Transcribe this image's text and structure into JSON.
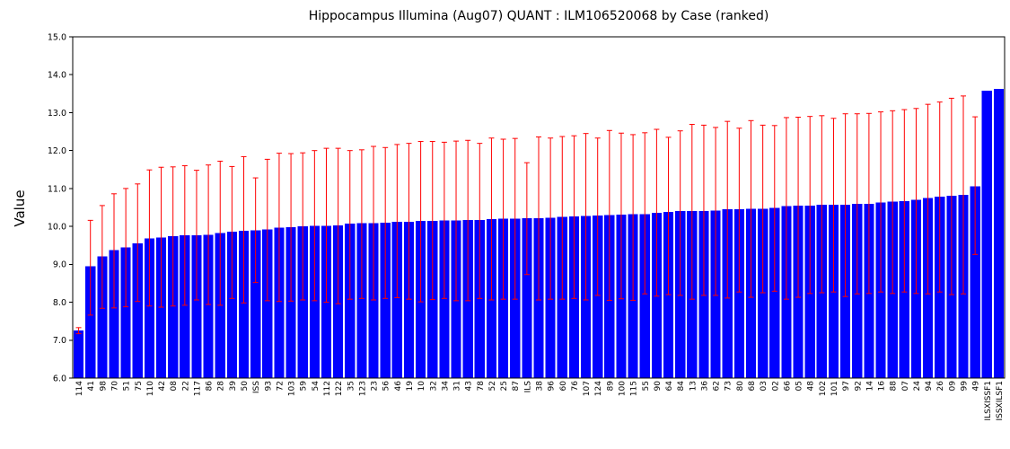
{
  "page": {
    "background": "#ffffff"
  },
  "chart_data": {
    "type": "bar",
    "title": "Hippocampus Illumina (Aug07) QUANT : ILM106520068 by Case (ranked)",
    "ylabel": "Value",
    "xlabel": "",
    "ylim": [
      6.0,
      15.0
    ],
    "ytick_labels": [
      "6.0",
      "7.0",
      "8.0",
      "9.0",
      "10.0",
      "11.0",
      "12.0",
      "13.0",
      "14.0",
      "15.0"
    ],
    "grid": false,
    "legend": null,
    "bar_color": "#0000ff",
    "error_bar_color": "#ff0000",
    "axis_color": "#000000",
    "categories": [
      "114",
      "41",
      "98",
      "70",
      "51",
      "75",
      "110",
      "42",
      "08",
      "22",
      "117",
      "86",
      "28",
      "39",
      "50",
      "ISS",
      "93",
      "72",
      "103",
      "59",
      "54",
      "112",
      "122",
      "35",
      "123",
      "23",
      "56",
      "46",
      "19",
      "10",
      "32",
      "34",
      "31",
      "43",
      "78",
      "52",
      "25",
      "87",
      "ILS",
      "38",
      "96",
      "60",
      "76",
      "107",
      "124",
      "89",
      "100",
      "115",
      "55",
      "90",
      "64",
      "84",
      "13",
      "36",
      "62",
      "73",
      "80",
      "68",
      "03",
      "02",
      "66",
      "05",
      "48",
      "102",
      "101",
      "97",
      "92",
      "14",
      "16",
      "88",
      "07",
      "24",
      "94",
      "26",
      "09",
      "99",
      "49",
      "ILSXISSF1",
      "ISSXILSF1"
    ],
    "values": [
      7.25,
      8.95,
      9.21,
      9.37,
      9.45,
      9.55,
      9.68,
      9.71,
      9.74,
      9.76,
      9.77,
      9.78,
      9.83,
      9.86,
      9.89,
      9.9,
      9.92,
      9.97,
      9.98,
      10.0,
      10.01,
      10.02,
      10.03,
      10.07,
      10.09,
      10.09,
      10.1,
      10.12,
      10.12,
      10.14,
      10.14,
      10.16,
      10.16,
      10.17,
      10.17,
      10.19,
      10.2,
      10.2,
      10.22,
      10.22,
      10.23,
      10.25,
      10.26,
      10.28,
      10.29,
      10.3,
      10.31,
      10.32,
      10.32,
      10.36,
      10.38,
      10.4,
      10.41,
      10.41,
      10.42,
      10.45,
      10.45,
      10.47,
      10.47,
      10.49,
      10.53,
      10.55,
      10.55,
      10.57,
      10.57,
      10.57,
      10.59,
      10.6,
      10.63,
      10.65,
      10.67,
      10.7,
      10.75,
      10.78,
      10.81,
      10.83,
      11.06,
      13.58,
      13.63
    ],
    "error_low": [
      7.17,
      7.66,
      7.84,
      7.85,
      7.88,
      8.02,
      7.9,
      7.87,
      7.9,
      7.92,
      8.06,
      7.94,
      7.92,
      8.1,
      7.98,
      8.52,
      8.04,
      8.02,
      8.03,
      8.06,
      8.04,
      8.0,
      7.96,
      8.08,
      8.1,
      8.06,
      8.1,
      8.12,
      8.08,
      8.01,
      8.07,
      8.1,
      8.04,
      8.04,
      8.1,
      8.06,
      8.08,
      8.08,
      8.73,
      8.06,
      8.08,
      8.08,
      8.1,
      8.06,
      8.18,
      8.05,
      8.09,
      8.05,
      8.22,
      8.16,
      8.2,
      8.18,
      8.08,
      8.18,
      8.18,
      8.11,
      8.27,
      8.13,
      8.25,
      8.29,
      8.08,
      8.13,
      8.23,
      8.25,
      8.27,
      8.15,
      8.22,
      8.23,
      8.27,
      8.23,
      8.27,
      8.23,
      8.22,
      8.27,
      8.2,
      8.22,
      9.26,
      null,
      null
    ],
    "error_high": [
      7.33,
      10.16,
      10.55,
      10.86,
      11.0,
      11.12,
      11.49,
      11.56,
      11.57,
      11.6,
      11.48,
      11.62,
      11.72,
      11.58,
      11.84,
      11.28,
      11.77,
      11.93,
      11.92,
      11.94,
      12.0,
      12.06,
      12.06,
      12.0,
      12.02,
      12.11,
      12.08,
      12.16,
      12.19,
      12.24,
      12.24,
      12.22,
      12.25,
      12.27,
      12.19,
      12.33,
      12.3,
      12.32,
      11.68,
      12.36,
      12.33,
      12.37,
      12.39,
      12.45,
      12.33,
      12.53,
      12.46,
      12.42,
      12.47,
      12.56,
      12.35,
      12.52,
      12.69,
      12.67,
      12.61,
      12.77,
      12.59,
      12.79,
      12.67,
      12.66,
      12.87,
      12.88,
      12.9,
      12.92,
      12.85,
      12.97,
      12.97,
      12.98,
      13.02,
      13.05,
      13.08,
      13.11,
      13.22,
      13.28,
      13.38,
      13.44,
      12.89,
      null,
      null
    ]
  }
}
